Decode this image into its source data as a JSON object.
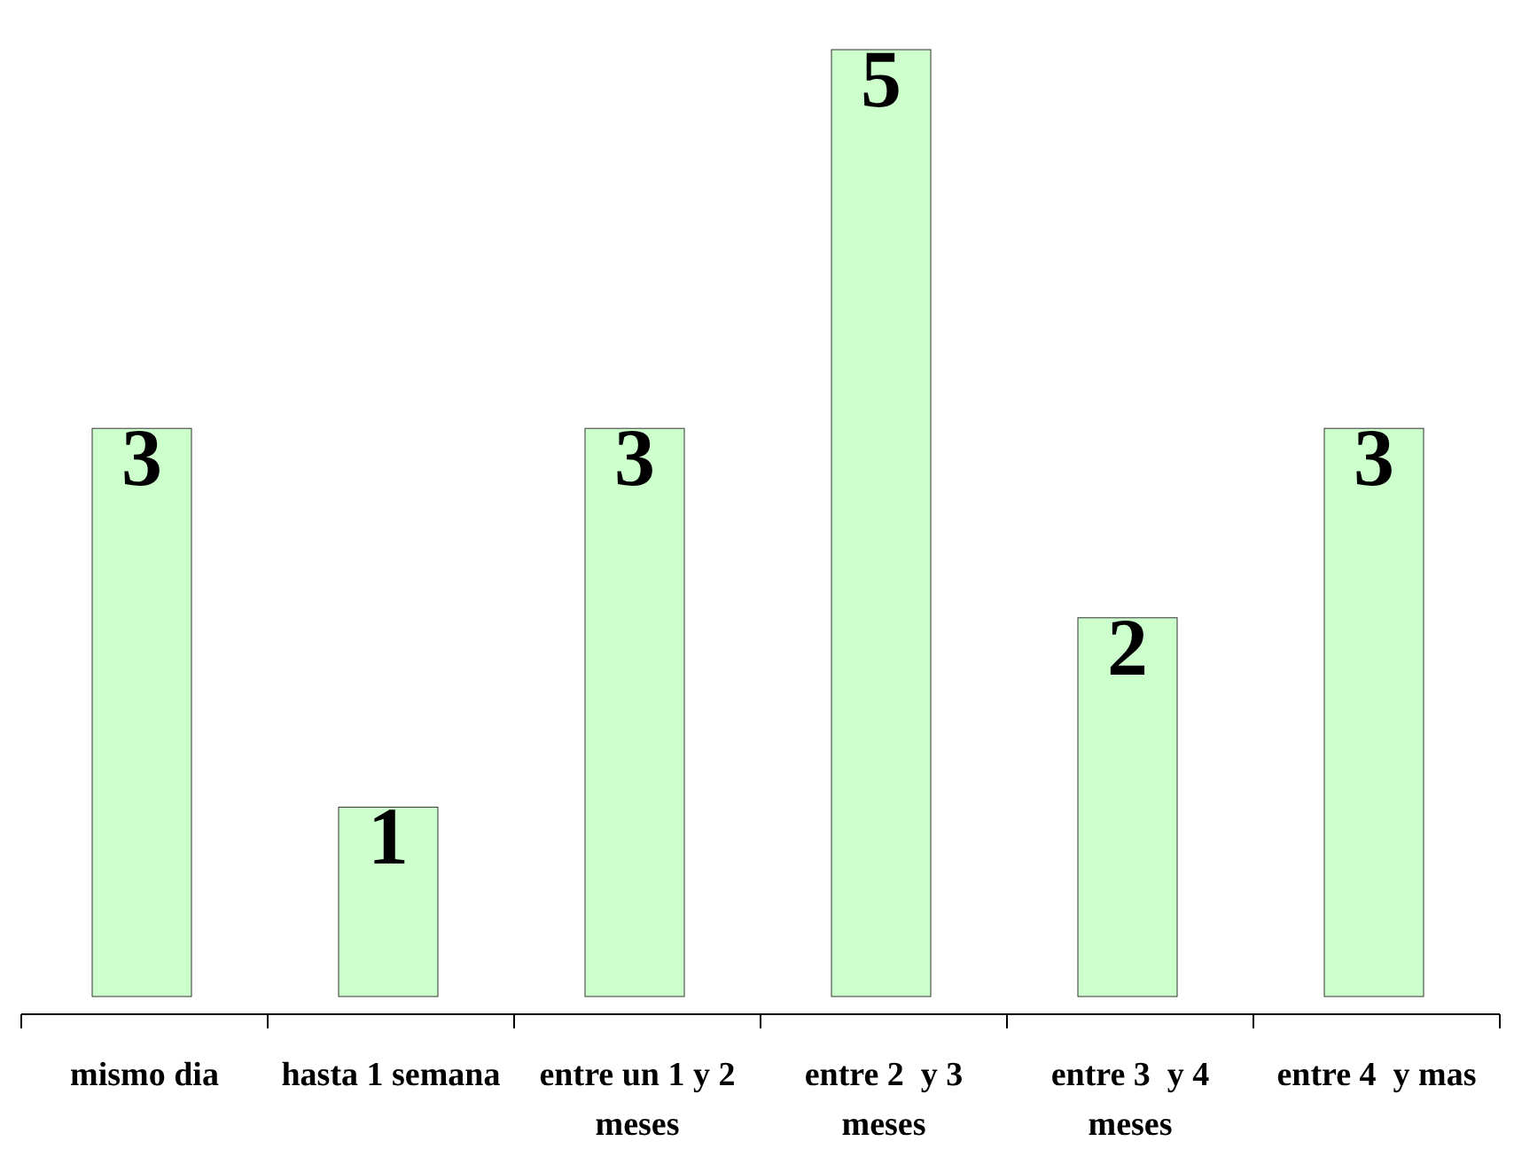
{
  "chart_data": {
    "type": "bar",
    "categories": [
      "mismo dia",
      "hasta 1 semana",
      "entre un 1 y 2 meses",
      "entre 2  y 3 meses",
      "entre 3  y 4 meses",
      "entre 4  y mas"
    ],
    "values": [
      3,
      1,
      3,
      5,
      2,
      3
    ],
    "color": "#ccffcc",
    "data_labels": true
  }
}
